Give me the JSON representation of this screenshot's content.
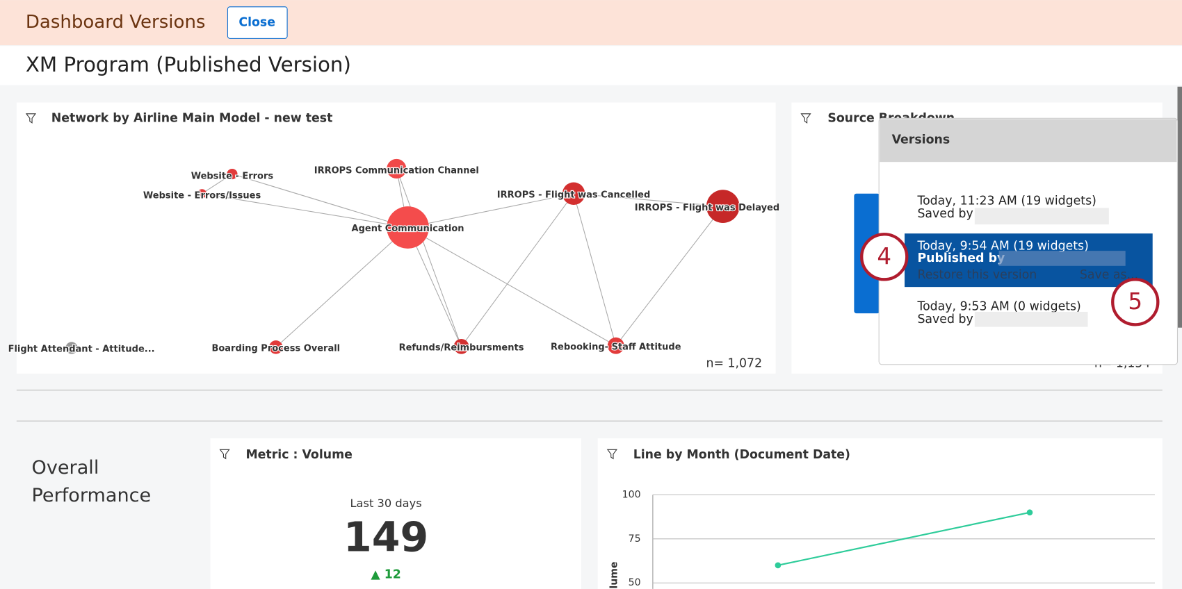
{
  "header": {
    "title": "Dashboard Versions",
    "close_button": "Close"
  },
  "dashboard_title": "XM Program (Published Version)",
  "network_widget": {
    "title": "Network by Airline Main Model - new test",
    "nodes": [
      "Website - Errors",
      "Website - Errors/Issues",
      "IRROPS Communication Channel",
      "Agent Communication",
      "IRROPS - Flight was Cancelled",
      "IRROPS - Flight was Delayed",
      "Flight Attendant - Attitude...",
      "Boarding Process Overall",
      "Refunds/Reimbursments",
      "Rebooking- Staff Attitude"
    ],
    "n_label": "n= 1,072"
  },
  "source_widget": {
    "title": "Source Breakdown",
    "n_label": "n= 1,154"
  },
  "versions_panel": {
    "title": "Versions",
    "items": [
      {
        "line1": "Today, 11:23 AM (19 widgets)",
        "line2": "Saved by"
      },
      {
        "line1": "Today, 9:54 AM (19 widgets)",
        "line2": "Published by",
        "actions": [
          "Restore this version",
          "Save as..."
        ]
      },
      {
        "line1": "Today, 9:53 AM (0 widgets)",
        "line2": "Saved by"
      }
    ]
  },
  "callouts": [
    "4",
    "5"
  ],
  "section_title": [
    "Overall",
    "Performance"
  ],
  "metric_widget": {
    "title": "Metric : Volume",
    "period": "Last 30 days",
    "value": "149",
    "change": "▲ 12"
  },
  "line_widget": {
    "chart_data": {
      "type": "line",
      "title": "Line by Month (Document Date)",
      "y_label": "Volume",
      "values": [
        60,
        90
      ],
      "color": "#2ecc9a",
      "yticks": [
        50,
        75,
        100
      ],
      "ylim": [
        50,
        100
      ],
      "grid": true
    }
  }
}
